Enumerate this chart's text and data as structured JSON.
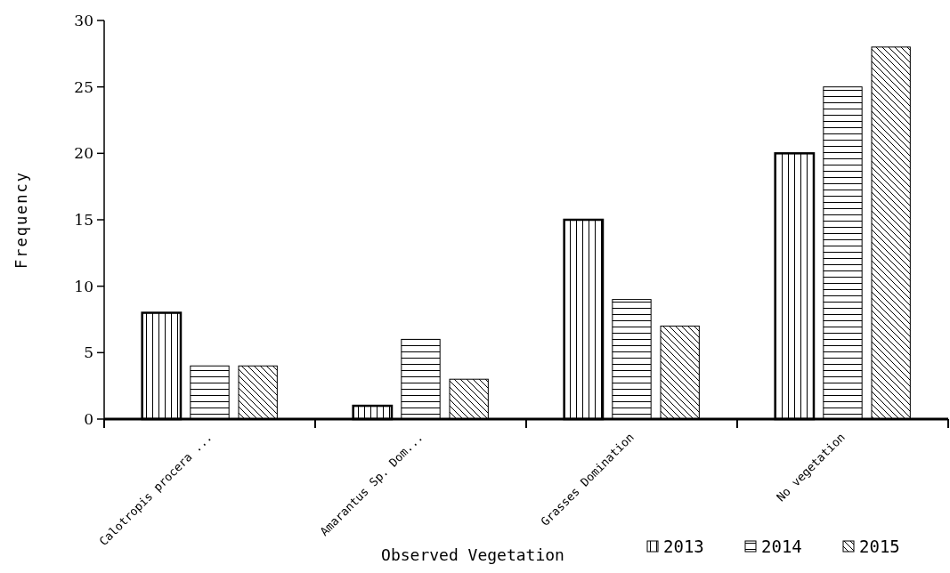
{
  "chart_data": {
    "type": "bar",
    "xlabel": "Observed Vegetation",
    "ylabel": "Frequency",
    "categories": [
      "Calotropis procera ...",
      "Amarantus Sp. Dom...",
      "Grasses Domination",
      "No vegetation"
    ],
    "series": [
      {
        "name": "2013",
        "color": "#000000",
        "values": [
          8,
          1,
          15,
          20
        ]
      },
      {
        "name": "2014",
        "color": "#000000",
        "values": [
          4,
          6,
          9,
          25
        ]
      },
      {
        "name": "2015",
        "color": "#000000",
        "values": [
          4,
          3,
          7,
          28
        ]
      }
    ],
    "ylim": [
      0,
      30
    ],
    "yticks": [
      0,
      5,
      10,
      15,
      20,
      25,
      30
    ],
    "legend": "bottom right",
    "grid": false
  }
}
